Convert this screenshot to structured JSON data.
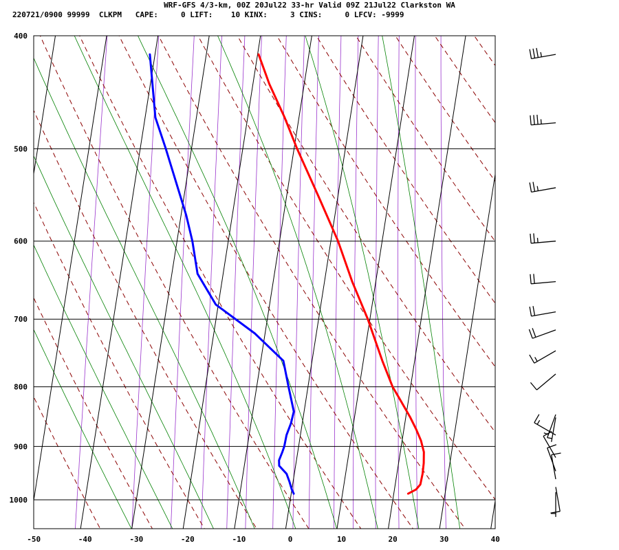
{
  "header": {
    "title_line1": "WRF-GFS 4/3-km, 00Z 20Jul22 33-hr Valid 09Z 21Jul22 Clarkston WA",
    "title_line2": "220721/0900 99999  CLKPM   CAPE:     0 LIFT:    10 KINX:     3 CINS:     0 LFCV: -9999"
  },
  "chart_data": {
    "type": "line",
    "chart_style": "skew-T log-p sounding",
    "title": "WRF-GFS 4/3-km, 00Z 20Jul22 33-hr Valid 09Z 21Jul22 Clarkston WA",
    "subtitle": "220721/0900 99999  CLKPM   CAPE:     0 LIFT:    10 KINX:     3 CINS:     0 LFCV: -9999",
    "xlabel": "",
    "ylabel": "",
    "x_ticks": [
      -50,
      -40,
      -30,
      -20,
      -10,
      0,
      10,
      20,
      30,
      40
    ],
    "y_ticks": [
      400,
      500,
      600,
      700,
      800,
      900,
      1000
    ],
    "xlim": [
      -50,
      40
    ],
    "ylim": [
      1035,
      400
    ],
    "y_scale": "log",
    "grid": true,
    "colors": {
      "temperature": "#ff0000",
      "dewpoint": "#0000ff",
      "dry_adiabat": "#8b0000",
      "moist_adiabat": "#008000",
      "mixing_ratio": "#9932cc",
      "grid": "#000000"
    },
    "series": [
      {
        "key": "temperature",
        "points": [
          {
            "p": 988,
            "t": 22.8
          },
          {
            "p": 980,
            "t": 24.2
          },
          {
            "p": 970,
            "t": 24.9
          },
          {
            "p": 950,
            "t": 25.0
          },
          {
            "p": 930,
            "t": 24.9
          },
          {
            "p": 910,
            "t": 24.6
          },
          {
            "p": 890,
            "t": 23.7
          },
          {
            "p": 870,
            "t": 22.4
          },
          {
            "p": 850,
            "t": 20.9
          },
          {
            "p": 820,
            "t": 18.3
          },
          {
            "p": 800,
            "t": 16.5
          },
          {
            "p": 760,
            "t": 13.7
          },
          {
            "p": 700,
            "t": 9.6
          },
          {
            "p": 650,
            "t": 5.4
          },
          {
            "p": 600,
            "t": 1.4
          },
          {
            "p": 550,
            "t": -3.7
          },
          {
            "p": 500,
            "t": -9.4
          },
          {
            "p": 470,
            "t": -12.8
          },
          {
            "p": 440,
            "t": -16.8
          },
          {
            "p": 415,
            "t": -19.8
          }
        ]
      },
      {
        "key": "dewpoint",
        "points": [
          {
            "p": 988,
            "t": 0.5
          },
          {
            "p": 980,
            "t": 0.0
          },
          {
            "p": 965,
            "t": -0.7
          },
          {
            "p": 950,
            "t": -1.5
          },
          {
            "p": 935,
            "t": -3.2
          },
          {
            "p": 925,
            "t": -3.4
          },
          {
            "p": 910,
            "t": -3.0
          },
          {
            "p": 900,
            "t": -2.8
          },
          {
            "p": 880,
            "t": -2.7
          },
          {
            "p": 860,
            "t": -2.2
          },
          {
            "p": 840,
            "t": -2.0
          },
          {
            "p": 800,
            "t": -3.8
          },
          {
            "p": 760,
            "t": -5.6
          },
          {
            "p": 720,
            "t": -12.0
          },
          {
            "p": 680,
            "t": -20.5
          },
          {
            "p": 640,
            "t": -25.0
          },
          {
            "p": 600,
            "t": -27.0
          },
          {
            "p": 570,
            "t": -29.0
          },
          {
            "p": 500,
            "t": -35.0
          },
          {
            "p": 470,
            "t": -38.0
          },
          {
            "p": 415,
            "t": -41.0
          }
        ]
      }
    ],
    "wind_barbs": [
      {
        "p": 415,
        "dir": 260,
        "kt": 35
      },
      {
        "p": 475,
        "dir": 265,
        "kt": 35
      },
      {
        "p": 540,
        "dir": 260,
        "kt": 25
      },
      {
        "p": 600,
        "dir": 265,
        "kt": 25
      },
      {
        "p": 650,
        "dir": 265,
        "kt": 20
      },
      {
        "p": 690,
        "dir": 260,
        "kt": 20
      },
      {
        "p": 715,
        "dir": 250,
        "kt": 20
      },
      {
        "p": 745,
        "dir": 240,
        "kt": 15
      },
      {
        "p": 780,
        "dir": 230,
        "kt": 10
      },
      {
        "p": 845,
        "dir": 200,
        "kt": 5
      },
      {
        "p": 850,
        "dir": 190,
        "kt": 5
      },
      {
        "p": 880,
        "dir": 300,
        "kt": 15
      },
      {
        "p": 920,
        "dir": 330,
        "kt": 10
      },
      {
        "p": 945,
        "dir": 340,
        "kt": 10
      },
      {
        "p": 960,
        "dir": 350,
        "kt": 10
      },
      {
        "p": 975,
        "dir": 170,
        "kt": 10
      },
      {
        "p": 985,
        "dir": 180,
        "kt": 5
      }
    ]
  }
}
